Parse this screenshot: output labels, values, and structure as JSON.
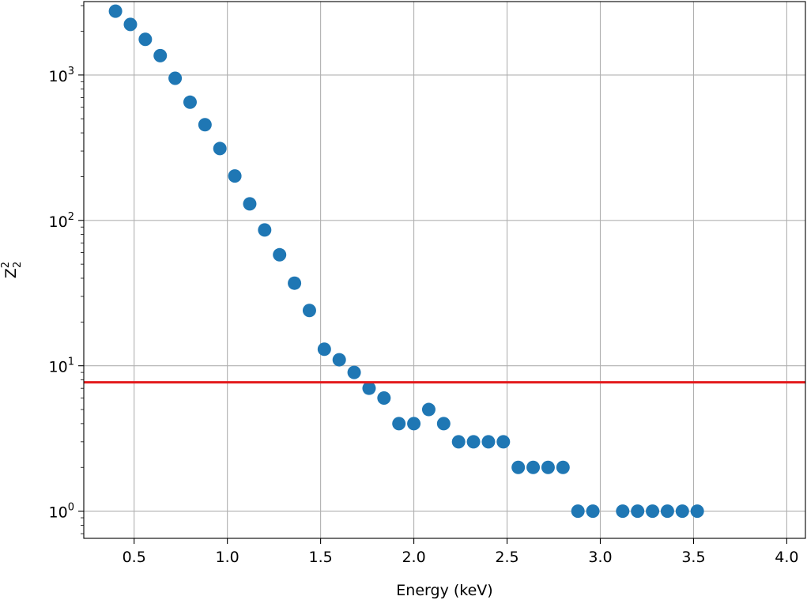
{
  "chart_data": {
    "type": "scatter",
    "title": "",
    "xlabel": "Energy (keV)",
    "ylabel_base": "Z",
    "ylabel_sup": "2",
    "ylabel_sub": "2",
    "xlim": [
      0.23,
      4.1
    ],
    "ylim": [
      0.65,
      3200
    ],
    "yscale": "log",
    "grid": true,
    "x_ticks": [
      {
        "value": 0.5,
        "label": "0.5"
      },
      {
        "value": 1.0,
        "label": "1.0"
      },
      {
        "value": 1.5,
        "label": "1.5"
      },
      {
        "value": 2.0,
        "label": "2.0"
      },
      {
        "value": 2.5,
        "label": "2.5"
      },
      {
        "value": 3.0,
        "label": "3.0"
      },
      {
        "value": 3.5,
        "label": "3.5"
      },
      {
        "value": 4.0,
        "label": "4.0"
      }
    ],
    "y_ticks": [
      {
        "value": 1,
        "base": "10",
        "exp": "0"
      },
      {
        "value": 10,
        "base": "10",
        "exp": "1"
      },
      {
        "value": 100,
        "base": "10",
        "exp": "2"
      },
      {
        "value": 1000,
        "base": "10",
        "exp": "3"
      }
    ],
    "series": [
      {
        "color": "#1f77b4",
        "x": [
          0.4,
          0.48,
          0.56,
          0.64,
          0.72,
          0.8,
          0.88,
          0.96,
          1.04,
          1.12,
          1.2,
          1.28,
          1.36,
          1.44,
          1.52,
          1.6,
          1.68,
          1.76,
          1.84,
          1.92,
          2.0,
          2.08,
          2.16,
          2.24,
          2.32,
          2.4,
          2.48,
          2.56,
          2.64,
          2.72,
          2.8,
          2.88,
          2.96,
          3.12,
          3.2,
          3.28,
          3.36,
          3.44,
          3.52
        ],
        "y": [
          2750,
          2230,
          1760,
          1360,
          950,
          650,
          455,
          312,
          202,
          130,
          86,
          58,
          37,
          24,
          13,
          11,
          9,
          7,
          6,
          4,
          4,
          5,
          4,
          3,
          3,
          3,
          3,
          2,
          2,
          2,
          2,
          1,
          1,
          1,
          1,
          1,
          1,
          1,
          1
        ]
      }
    ],
    "hline": {
      "y": 7.7,
      "color": "#e31a1c"
    }
  }
}
